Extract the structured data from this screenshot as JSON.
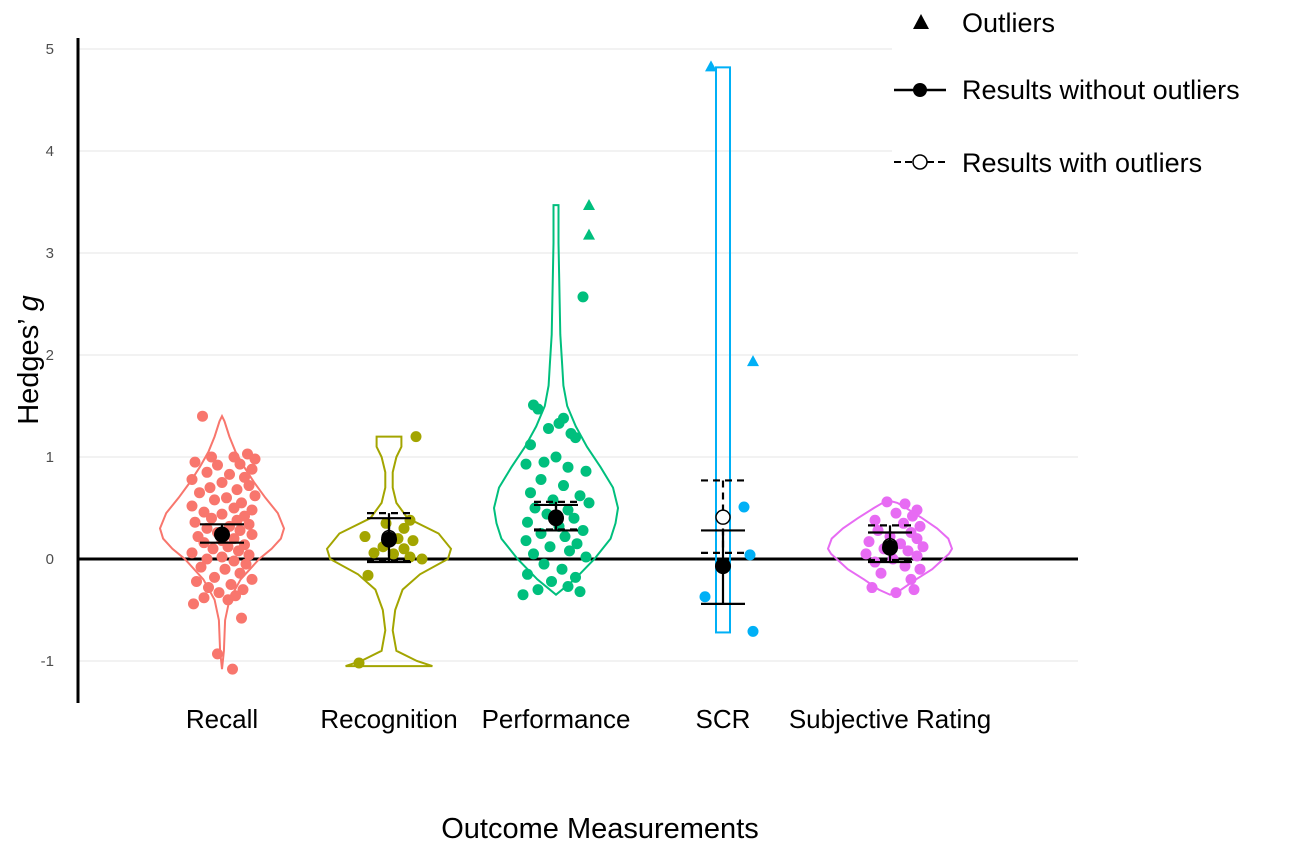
{
  "chart_data": {
    "type": "violin",
    "xlabel": "Outcome Measurements",
    "ylabel_prefix": "Hedges’ ",
    "ylabel_symbol": "g",
    "ylim": [
      -1.4,
      5.15
    ],
    "yticks": [
      -1,
      0,
      1,
      2,
      3,
      4,
      5
    ],
    "grid": true,
    "legend_position": "top-right",
    "legend": {
      "outliers": "Outliers",
      "without": "Results without outliers",
      "with": "Results with outliers"
    },
    "categories": [
      {
        "name": "Recall",
        "color": "#F8766D",
        "violin": [
          [
            -1.08,
            0.0
          ],
          [
            -0.9,
            0.03
          ],
          [
            -0.6,
            0.05
          ],
          [
            -0.4,
            0.12
          ],
          [
            -0.2,
            0.3
          ],
          [
            0.0,
            0.6
          ],
          [
            0.1,
            0.8
          ],
          [
            0.2,
            0.95
          ],
          [
            0.3,
            1.0
          ],
          [
            0.45,
            0.9
          ],
          [
            0.6,
            0.7
          ],
          [
            0.75,
            0.52
          ],
          [
            0.9,
            0.36
          ],
          [
            1.05,
            0.22
          ],
          [
            1.2,
            0.12
          ],
          [
            1.35,
            0.04
          ],
          [
            1.4,
            0.0
          ]
        ],
        "points": [
          [
            -0.13,
            1.4
          ],
          [
            0.17,
            1.03
          ],
          [
            -0.07,
            1.0
          ],
          [
            0.08,
            1.0
          ],
          [
            0.22,
            0.98
          ],
          [
            -0.18,
            0.95
          ],
          [
            0.12,
            0.93
          ],
          [
            -0.03,
            0.92
          ],
          [
            0.2,
            0.88
          ],
          [
            -0.1,
            0.85
          ],
          [
            0.05,
            0.83
          ],
          [
            0.15,
            0.8
          ],
          [
            -0.2,
            0.78
          ],
          [
            0.0,
            0.75
          ],
          [
            0.18,
            0.72
          ],
          [
            -0.08,
            0.7
          ],
          [
            0.1,
            0.68
          ],
          [
            -0.15,
            0.65
          ],
          [
            0.22,
            0.62
          ],
          [
            0.03,
            0.6
          ],
          [
            -0.05,
            0.58
          ],
          [
            0.13,
            0.55
          ],
          [
            -0.2,
            0.52
          ],
          [
            0.08,
            0.5
          ],
          [
            0.2,
            0.48
          ],
          [
            -0.12,
            0.46
          ],
          [
            0.0,
            0.44
          ],
          [
            0.15,
            0.42
          ],
          [
            -0.07,
            0.4
          ],
          [
            0.1,
            0.38
          ],
          [
            -0.18,
            0.36
          ],
          [
            0.18,
            0.34
          ],
          [
            0.05,
            0.32
          ],
          [
            -0.1,
            0.3
          ],
          [
            0.12,
            0.28
          ],
          [
            -0.03,
            0.26
          ],
          [
            0.2,
            0.24
          ],
          [
            -0.16,
            0.22
          ],
          [
            0.08,
            0.2
          ],
          [
            0.0,
            0.18
          ],
          [
            -0.12,
            0.16
          ],
          [
            0.15,
            0.14
          ],
          [
            0.04,
            0.12
          ],
          [
            -0.06,
            0.1
          ],
          [
            0.11,
            0.08
          ],
          [
            -0.2,
            0.06
          ],
          [
            0.18,
            0.04
          ],
          [
            0.0,
            0.02
          ],
          [
            -0.1,
            0.0
          ],
          [
            0.08,
            -0.02
          ],
          [
            0.16,
            -0.05
          ],
          [
            -0.14,
            -0.08
          ],
          [
            0.02,
            -0.1
          ],
          [
            0.12,
            -0.14
          ],
          [
            -0.05,
            -0.18
          ],
          [
            0.2,
            -0.2
          ],
          [
            -0.17,
            -0.22
          ],
          [
            0.06,
            -0.25
          ],
          [
            -0.09,
            -0.28
          ],
          [
            0.14,
            -0.3
          ],
          [
            -0.02,
            -0.33
          ],
          [
            0.09,
            -0.36
          ],
          [
            -0.12,
            -0.38
          ],
          [
            0.04,
            -0.4
          ],
          [
            -0.19,
            -0.44
          ],
          [
            0.13,
            -0.58
          ],
          [
            -0.03,
            -0.93
          ],
          [
            0.07,
            -1.08
          ]
        ],
        "outliers": [],
        "summary_without": {
          "mean": 0.24,
          "lower": 0.16,
          "upper": 0.34
        },
        "summary_with": null
      },
      {
        "name": "Recognition",
        "color": "#A3A500",
        "violin": [
          [
            -1.05,
            0.7
          ],
          [
            -1.0,
            0.45
          ],
          [
            -0.9,
            0.12
          ],
          [
            -0.7,
            0.06
          ],
          [
            -0.5,
            0.1
          ],
          [
            -0.3,
            0.22
          ],
          [
            -0.15,
            0.5
          ],
          [
            0.0,
            0.95
          ],
          [
            0.1,
            1.0
          ],
          [
            0.25,
            0.8
          ],
          [
            0.4,
            0.3
          ],
          [
            0.55,
            0.12
          ],
          [
            0.7,
            0.06
          ],
          [
            0.85,
            0.06
          ],
          [
            1.0,
            0.12
          ],
          [
            1.1,
            0.2
          ],
          [
            1.2,
            0.2
          ]
        ],
        "points": [
          [
            0.18,
            1.2
          ],
          [
            0.14,
            0.38
          ],
          [
            -0.02,
            0.35
          ],
          [
            0.1,
            0.3
          ],
          [
            -0.16,
            0.22
          ],
          [
            0.06,
            0.2
          ],
          [
            0.16,
            0.18
          ],
          [
            -0.04,
            0.12
          ],
          [
            0.1,
            0.1
          ],
          [
            -0.1,
            0.06
          ],
          [
            0.03,
            0.05
          ],
          [
            0.14,
            0.02
          ],
          [
            0.22,
            0.0
          ],
          [
            -0.14,
            -0.16
          ],
          [
            -0.2,
            -1.02
          ]
        ],
        "outliers": [],
        "summary_without": {
          "mean": 0.19,
          "lower": -0.03,
          "upper": 0.4
        },
        "summary_with": {
          "mean": 0.21,
          "lower": -0.02,
          "upper": 0.45
        }
      },
      {
        "name": "Performance",
        "color": "#00BF7D",
        "violin": [
          [
            -0.35,
            0.0
          ],
          [
            -0.2,
            0.3
          ],
          [
            0.0,
            0.62
          ],
          [
            0.2,
            0.88
          ],
          [
            0.35,
            0.96
          ],
          [
            0.5,
            1.0
          ],
          [
            0.7,
            0.92
          ],
          [
            0.9,
            0.72
          ],
          [
            1.1,
            0.5
          ],
          [
            1.3,
            0.32
          ],
          [
            1.5,
            0.18
          ],
          [
            1.7,
            0.12
          ],
          [
            1.9,
            0.1
          ],
          [
            2.2,
            0.07
          ],
          [
            2.5,
            0.06
          ],
          [
            2.8,
            0.05
          ],
          [
            3.1,
            0.04
          ],
          [
            3.3,
            0.04
          ],
          [
            3.47,
            0.04
          ]
        ],
        "points": [
          [
            0.18,
            2.57
          ],
          [
            -0.15,
            1.51
          ],
          [
            -0.12,
            1.47
          ],
          [
            0.05,
            1.38
          ],
          [
            0.02,
            1.33
          ],
          [
            -0.05,
            1.28
          ],
          [
            0.1,
            1.23
          ],
          [
            0.13,
            1.19
          ],
          [
            -0.17,
            1.12
          ],
          [
            0.0,
            1.0
          ],
          [
            -0.08,
            0.95
          ],
          [
            -0.2,
            0.93
          ],
          [
            0.08,
            0.9
          ],
          [
            0.2,
            0.86
          ],
          [
            -0.1,
            0.78
          ],
          [
            0.05,
            0.72
          ],
          [
            -0.17,
            0.65
          ],
          [
            0.16,
            0.62
          ],
          [
            -0.02,
            0.58
          ],
          [
            0.22,
            0.55
          ],
          [
            -0.14,
            0.5
          ],
          [
            0.08,
            0.48
          ],
          [
            -0.06,
            0.44
          ],
          [
            0.12,
            0.4
          ],
          [
            -0.19,
            0.36
          ],
          [
            0.02,
            0.32
          ],
          [
            0.18,
            0.28
          ],
          [
            -0.1,
            0.25
          ],
          [
            0.06,
            0.22
          ],
          [
            -0.2,
            0.18
          ],
          [
            0.14,
            0.15
          ],
          [
            -0.04,
            0.12
          ],
          [
            0.09,
            0.08
          ],
          [
            -0.15,
            0.05
          ],
          [
            0.2,
            0.02
          ],
          [
            -0.08,
            -0.05
          ],
          [
            0.04,
            -0.1
          ],
          [
            -0.19,
            -0.15
          ],
          [
            0.13,
            -0.18
          ],
          [
            -0.03,
            -0.22
          ],
          [
            0.08,
            -0.27
          ],
          [
            -0.12,
            -0.3
          ],
          [
            0.16,
            -0.32
          ],
          [
            -0.22,
            -0.35
          ]
        ],
        "outliers": [
          [
            0.22,
            3.47
          ],
          [
            0.22,
            3.18
          ]
        ],
        "summary_without": {
          "mean": 0.4,
          "lower": 0.28,
          "upper": 0.53
        },
        "summary_with": {
          "mean": 0.41,
          "lower": 0.29,
          "upper": 0.56
        }
      },
      {
        "name": "SCR",
        "color": "#00B0F6",
        "violin": [
          [
            -0.72,
            1.0
          ],
          [
            -0.5,
            1.0
          ],
          [
            0.0,
            1.0
          ],
          [
            0.5,
            1.0
          ],
          [
            1.0,
            1.0
          ],
          [
            1.5,
            1.0
          ],
          [
            2.0,
            1.0
          ],
          [
            2.5,
            1.0
          ],
          [
            3.0,
            1.0
          ],
          [
            3.5,
            1.0
          ],
          [
            4.0,
            1.0
          ],
          [
            4.5,
            1.0
          ],
          [
            4.82,
            1.0
          ]
        ],
        "points": [
          [
            0.14,
            0.51
          ],
          [
            0.18,
            0.04
          ],
          [
            -0.12,
            -0.37
          ],
          [
            0.2,
            -0.71
          ]
        ],
        "outliers": [
          [
            -0.08,
            4.83
          ],
          [
            0.2,
            1.94
          ]
        ],
        "summary_without": {
          "mean": -0.07,
          "lower": -0.44,
          "upper": 0.28
        },
        "summary_with": {
          "mean": 0.41,
          "lower": 0.06,
          "upper": 0.77
        }
      },
      {
        "name": "Subjective Rating",
        "color": "#E76BF3",
        "violin": [
          [
            -0.35,
            0.0
          ],
          [
            -0.3,
            0.18
          ],
          [
            -0.2,
            0.42
          ],
          [
            -0.1,
            0.68
          ],
          [
            0.0,
            0.86
          ],
          [
            0.05,
            0.95
          ],
          [
            0.1,
            1.0
          ],
          [
            0.2,
            0.94
          ],
          [
            0.3,
            0.76
          ],
          [
            0.4,
            0.52
          ],
          [
            0.5,
            0.26
          ],
          [
            0.55,
            0.12
          ],
          [
            0.57,
            0.0
          ]
        ],
        "points": [
          [
            -0.02,
            0.56
          ],
          [
            0.1,
            0.54
          ],
          [
            0.18,
            0.48
          ],
          [
            0.04,
            0.45
          ],
          [
            0.15,
            0.42
          ],
          [
            -0.1,
            0.38
          ],
          [
            0.09,
            0.35
          ],
          [
            0.2,
            0.32
          ],
          [
            -0.08,
            0.28
          ],
          [
            0.14,
            0.26
          ],
          [
            0.0,
            0.22
          ],
          [
            0.18,
            0.2
          ],
          [
            -0.14,
            0.17
          ],
          [
            0.07,
            0.15
          ],
          [
            0.22,
            0.12
          ],
          [
            -0.04,
            0.1
          ],
          [
            0.12,
            0.08
          ],
          [
            -0.16,
            0.05
          ],
          [
            0.18,
            0.03
          ],
          [
            0.02,
            0.0
          ],
          [
            -0.1,
            -0.03
          ],
          [
            0.1,
            -0.07
          ],
          [
            0.2,
            -0.1
          ],
          [
            -0.06,
            -0.14
          ],
          [
            0.14,
            -0.2
          ],
          [
            -0.12,
            -0.28
          ],
          [
            0.04,
            -0.33
          ],
          [
            0.16,
            -0.3
          ]
        ],
        "outliers": [],
        "summary_without": {
          "mean": 0.11,
          "lower": -0.03,
          "upper": 0.26
        },
        "summary_with": {
          "mean": 0.13,
          "lower": -0.01,
          "upper": 0.33
        }
      }
    ]
  }
}
